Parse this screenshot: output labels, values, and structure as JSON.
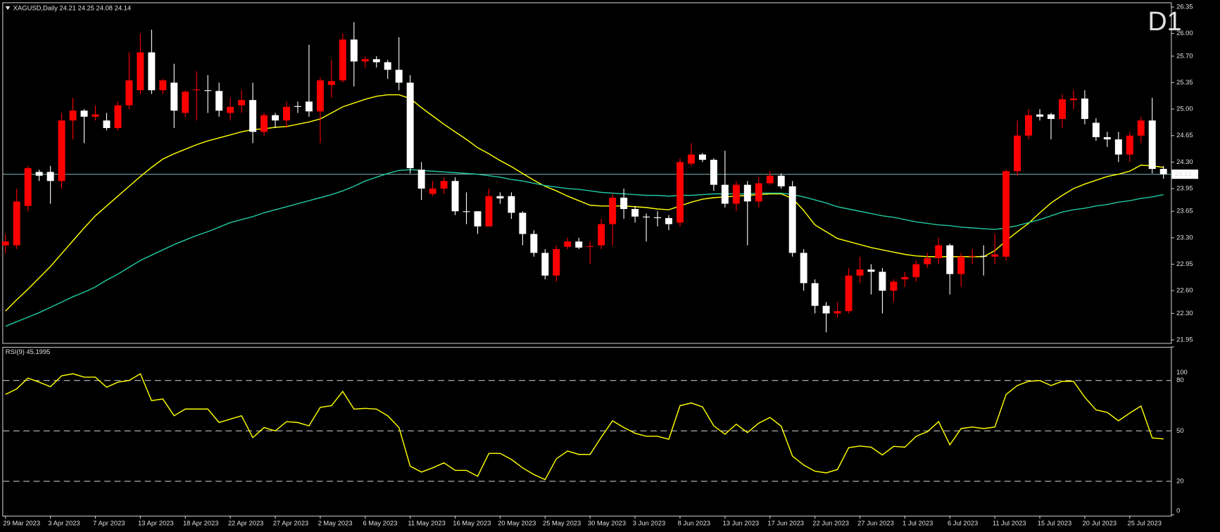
{
  "chart_data": [
    {
      "type": "candlestick",
      "title": "XAGUSD,Daily  24.21 24.25 24.08 24.14",
      "annotation": "D1",
      "annotation_color": "#ff0000",
      "open": [
        23.2,
        23.2,
        23.72,
        24.17,
        24.17,
        24.05,
        24.85,
        24.98,
        24.9,
        24.85,
        24.75,
        25.05,
        25.25,
        25.75,
        25.25,
        25.35,
        24.95,
        25.25,
        25.25,
        25.24,
        24.95,
        25.05,
        25.12,
        24.7,
        24.92,
        24.85,
        25.04,
        25.1,
        24.97,
        25.32,
        25.38,
        25.92,
        25.63,
        25.66,
        25.62,
        25.52,
        25.35,
        24.2,
        23.88,
        23.95,
        24.05,
        23.65,
        23.65,
        23.45,
        23.85,
        23.85,
        23.63,
        23.35,
        23.1,
        22.8,
        23.18,
        23.25,
        23.18,
        23.2,
        23.48,
        23.83,
        23.68,
        23.58,
        23.57,
        23.56,
        23.5,
        24.28,
        24.4,
        24.33,
        24.0,
        23.75,
        24.0,
        23.78,
        24.02,
        24.12,
        23.98,
        23.1,
        22.7,
        22.4,
        22.3,
        22.33,
        22.8,
        22.88,
        22.85,
        22.6,
        22.75,
        22.78,
        22.95,
        23.03,
        23.2,
        22.82,
        23.05,
        23.06,
        23.05,
        23.05,
        24.18,
        24.65,
        24.93,
        24.93,
        24.87,
        25.12,
        25.14,
        24.82,
        24.63,
        24.6,
        24.4,
        24.65,
        24.85,
        24.21
      ],
      "high": [
        23.35,
        23.95,
        24.25,
        24.2,
        24.25,
        24.95,
        25.15,
        25.0,
        25.05,
        24.95,
        25.1,
        25.75,
        26.0,
        26.05,
        25.4,
        25.6,
        25.25,
        25.5,
        25.45,
        25.35,
        25.15,
        25.25,
        25.35,
        24.95,
        24.95,
        25.1,
        25.1,
        25.85,
        25.42,
        25.65,
        26.0,
        26.15,
        25.7,
        25.7,
        25.65,
        25.95,
        25.45,
        24.3,
        24.05,
        24.1,
        24.1,
        23.9,
        23.65,
        23.95,
        23.9,
        23.9,
        23.65,
        23.4,
        23.15,
        23.2,
        23.3,
        23.3,
        23.25,
        23.55,
        23.88,
        23.95,
        23.72,
        23.62,
        23.65,
        23.6,
        24.35,
        24.55,
        24.42,
        24.35,
        24.45,
        24.05,
        24.05,
        24.1,
        24.18,
        24.15,
        24.05,
        23.15,
        22.75,
        22.45,
        22.45,
        22.9,
        23.05,
        22.95,
        22.9,
        22.75,
        22.85,
        23.0,
        23.1,
        23.3,
        23.22,
        23.1,
        23.15,
        23.2,
        23.35,
        24.2,
        24.85,
        25.0,
        25.0,
        24.95,
        25.2,
        25.25,
        25.25,
        24.88,
        24.7,
        24.7,
        24.7,
        24.9,
        25.15,
        24.25
      ],
      "low": [
        23.1,
        23.15,
        23.65,
        24.05,
        23.75,
        23.95,
        24.6,
        24.55,
        24.85,
        24.72,
        24.72,
        25.0,
        25.2,
        25.2,
        25.2,
        24.75,
        24.9,
        24.85,
        24.95,
        24.9,
        24.85,
        24.95,
        24.55,
        24.65,
        24.75,
        24.75,
        24.95,
        24.9,
        24.55,
        25.15,
        25.35,
        25.3,
        25.55,
        25.55,
        25.4,
        25.25,
        24.15,
        23.8,
        23.85,
        23.88,
        23.6,
        23.48,
        23.35,
        23.45,
        23.75,
        23.55,
        23.2,
        23.05,
        22.75,
        22.72,
        23.15,
        23.15,
        22.95,
        23.15,
        23.2,
        23.55,
        23.5,
        23.25,
        23.45,
        23.4,
        23.45,
        24.25,
        24.3,
        23.92,
        23.7,
        23.65,
        23.2,
        23.7,
        24.0,
        23.95,
        23.05,
        22.6,
        22.3,
        22.05,
        22.25,
        22.3,
        22.7,
        22.55,
        22.3,
        22.45,
        22.65,
        22.72,
        22.9,
        22.95,
        22.55,
        22.65,
        22.95,
        22.8,
        22.95,
        23.0,
        24.12,
        24.6,
        24.85,
        24.6,
        24.75,
        25.0,
        24.8,
        24.58,
        24.5,
        24.3,
        24.3,
        24.55,
        24.15,
        24.08
      ],
      "close": [
        23.25,
        23.78,
        24.22,
        24.12,
        24.05,
        24.85,
        24.98,
        24.9,
        24.93,
        24.75,
        25.05,
        25.38,
        25.75,
        25.25,
        25.38,
        24.98,
        25.23,
        25.26,
        25.24,
        24.98,
        25.03,
        25.12,
        24.7,
        24.92,
        24.85,
        25.03,
        25.03,
        24.97,
        25.38,
        25.37,
        25.92,
        25.63,
        25.66,
        25.62,
        25.52,
        25.35,
        24.22,
        23.95,
        23.95,
        24.05,
        23.65,
        23.64,
        23.45,
        23.85,
        23.82,
        23.63,
        23.35,
        23.1,
        22.8,
        23.15,
        23.25,
        23.17,
        23.19,
        23.48,
        23.83,
        23.68,
        23.58,
        23.57,
        23.56,
        23.48,
        24.3,
        24.4,
        24.33,
        24.0,
        23.75,
        24.0,
        23.78,
        24.02,
        24.12,
        23.98,
        23.1,
        22.7,
        22.4,
        22.3,
        22.33,
        22.8,
        22.88,
        22.85,
        22.6,
        22.72,
        22.78,
        22.95,
        23.03,
        23.2,
        22.82,
        23.05,
        23.06,
        23.05,
        23.08,
        24.18,
        24.65,
        24.92,
        24.9,
        24.87,
        25.13,
        25.14,
        24.87,
        24.63,
        24.6,
        24.4,
        24.65,
        24.85,
        24.21,
        24.14
      ],
      "up_color": "#ff0000",
      "down_color": "#ffffff",
      "lines": [
        {
          "color": "#ffff00",
          "values": [
            22.33,
            22.48,
            22.62,
            22.77,
            22.92,
            23.09,
            23.26,
            23.43,
            23.59,
            23.72,
            23.85,
            23.98,
            24.11,
            24.23,
            24.34,
            24.41,
            24.47,
            24.53,
            24.58,
            24.62,
            24.66,
            24.7,
            24.73,
            24.74,
            24.76,
            24.77,
            24.8,
            24.83,
            24.87,
            24.95,
            25.03,
            25.08,
            25.13,
            25.17,
            25.19,
            25.19,
            25.14,
            25.02,
            24.91,
            24.8,
            24.7,
            24.6,
            24.49,
            24.41,
            24.32,
            24.24,
            24.15,
            24.06,
            23.98,
            23.92,
            23.85,
            23.79,
            23.73,
            23.72,
            23.72,
            23.72,
            23.71,
            23.7,
            23.68,
            23.67,
            23.72,
            23.77,
            23.81,
            23.83,
            23.84,
            23.85,
            23.86,
            23.87,
            23.88,
            23.88,
            23.82,
            23.66,
            23.47,
            23.38,
            23.29,
            23.25,
            23.21,
            23.17,
            23.14,
            23.11,
            23.08,
            23.06,
            23.05,
            23.05,
            23.05,
            23.05,
            23.05,
            23.05,
            23.13,
            23.26,
            23.38,
            23.49,
            23.63,
            23.76,
            23.86,
            23.95,
            24.01,
            24.06,
            24.11,
            24.14,
            24.18,
            24.26,
            24.25,
            24.23
          ]
        },
        {
          "color": "#20c8a0",
          "values": [
            22.13,
            22.19,
            22.25,
            22.31,
            22.38,
            22.45,
            22.52,
            22.58,
            22.65,
            22.74,
            22.82,
            22.91,
            23.0,
            23.07,
            23.14,
            23.21,
            23.27,
            23.33,
            23.38,
            23.44,
            23.5,
            23.54,
            23.58,
            23.63,
            23.67,
            23.71,
            23.75,
            23.79,
            23.83,
            23.87,
            23.92,
            23.98,
            24.05,
            24.1,
            24.15,
            24.19,
            24.2,
            24.19,
            24.18,
            24.17,
            24.16,
            24.15,
            24.14,
            24.12,
            24.1,
            24.07,
            24.05,
            24.02,
            23.99,
            23.97,
            23.95,
            23.94,
            23.92,
            23.9,
            23.89,
            23.88,
            23.87,
            23.86,
            23.86,
            23.85,
            23.86,
            23.86,
            23.87,
            23.88,
            23.88,
            23.88,
            23.88,
            23.89,
            23.89,
            23.89,
            23.87,
            23.84,
            23.8,
            23.76,
            23.71,
            23.68,
            23.65,
            23.62,
            23.59,
            23.57,
            23.54,
            23.51,
            23.49,
            23.47,
            23.46,
            23.44,
            23.43,
            23.42,
            23.41,
            23.43,
            23.46,
            23.5,
            23.54,
            23.59,
            23.64,
            23.67,
            23.69,
            23.72,
            23.74,
            23.77,
            23.79,
            23.82,
            23.84,
            23.87
          ]
        }
      ],
      "current_price": 24.14,
      "current_price_color": "#6f9f9f",
      "ylim": [
        21.95,
        26.35
      ],
      "yticks": [
        21.95,
        {
          "value": 22.3,
          "label": "22.30"
        },
        {
          "value": 22.6,
          "label": "22.60"
        },
        22.95,
        {
          "value": 23.3,
          "label": "23.30"
        },
        23.65,
        23.95,
        {
          "value": 24.3,
          "label": "24.30"
        },
        24.65,
        {
          "value": 25,
          "label": "25.00"
        },
        25.35,
        {
          "value": 25.7,
          "label": "25.70"
        },
        {
          "value": 26,
          "label": "26.00"
        },
        26.35
      ]
    },
    {
      "type": "line",
      "title": "RSI(9) 45.1995",
      "categories": [
        "29 Mar 2023",
        null,
        null,
        null,
        "3 Apr 2023",
        null,
        null,
        null,
        "7 Apr 2023",
        null,
        null,
        null,
        "13 Apr 2023",
        null,
        null,
        null,
        "18 Apr 2023",
        null,
        null,
        null,
        "22 Apr 2023",
        null,
        null,
        null,
        "27 Apr 2023",
        null,
        null,
        null,
        "2 May 2023",
        null,
        null,
        null,
        "6 May 2023",
        null,
        null,
        null,
        "11 May 2023",
        null,
        null,
        null,
        "16 May 2023",
        null,
        null,
        null,
        "20 May 2023",
        null,
        null,
        null,
        "25 May 2023",
        null,
        null,
        null,
        "30 May 2023",
        null,
        null,
        null,
        "3 Jun 2023",
        null,
        null,
        null,
        "8 Jun 2023",
        null,
        null,
        null,
        "13 Jun 2023",
        null,
        null,
        null,
        "17 Jun 2023",
        null,
        null,
        null,
        "22 Jun 2023",
        null,
        null,
        null,
        "27 Jun 2023",
        null,
        null,
        null,
        "1 Jul 2023",
        null,
        null,
        null,
        "6 Jul 2023",
        null,
        null,
        null,
        "11 Jul 2023",
        null,
        null,
        null,
        "15 Jul 2023",
        null,
        null,
        null,
        "20 Jul 2023",
        null,
        null,
        null,
        "25 Jul 2023",
        null,
        null,
        null
      ],
      "values": [
        71.7,
        75,
        81.4,
        79,
        76.3,
        82.8,
        84,
        82,
        82,
        76,
        79,
        80,
        84,
        68,
        69,
        59,
        63,
        63,
        63,
        55,
        57,
        59,
        46,
        52,
        50,
        55.5,
        55,
        53,
        64,
        65,
        73.5,
        63,
        63.4,
        63,
        59,
        52,
        29,
        25.5,
        28,
        31,
        26.5,
        26.5,
        23,
        36.6,
        36.6,
        33,
        28,
        24,
        21,
        33.4,
        38,
        36,
        36,
        46.3,
        56,
        52,
        48.6,
        46.8,
        46.8,
        45,
        65,
        66.6,
        64.3,
        53,
        48,
        54,
        49,
        54.6,
        58,
        52.8,
        35,
        29.7,
        26,
        25,
        27,
        40,
        41,
        40.3,
        35.7,
        40.8,
        40.3,
        46.8,
        49.5,
        55.5,
        41.7,
        51.4,
        52.3,
        51.4,
        52.3,
        71.7,
        77,
        79.5,
        80,
        77,
        79.5,
        79.5,
        70,
        62.5,
        61,
        56,
        60.6,
        64.8,
        45.8,
        45.1995
      ],
      "color": "#ffff00",
      "ylim": [
        0,
        100
      ],
      "yticks": [
        100,
        80,
        50,
        20,
        0
      ],
      "grid": "dashed"
    }
  ]
}
